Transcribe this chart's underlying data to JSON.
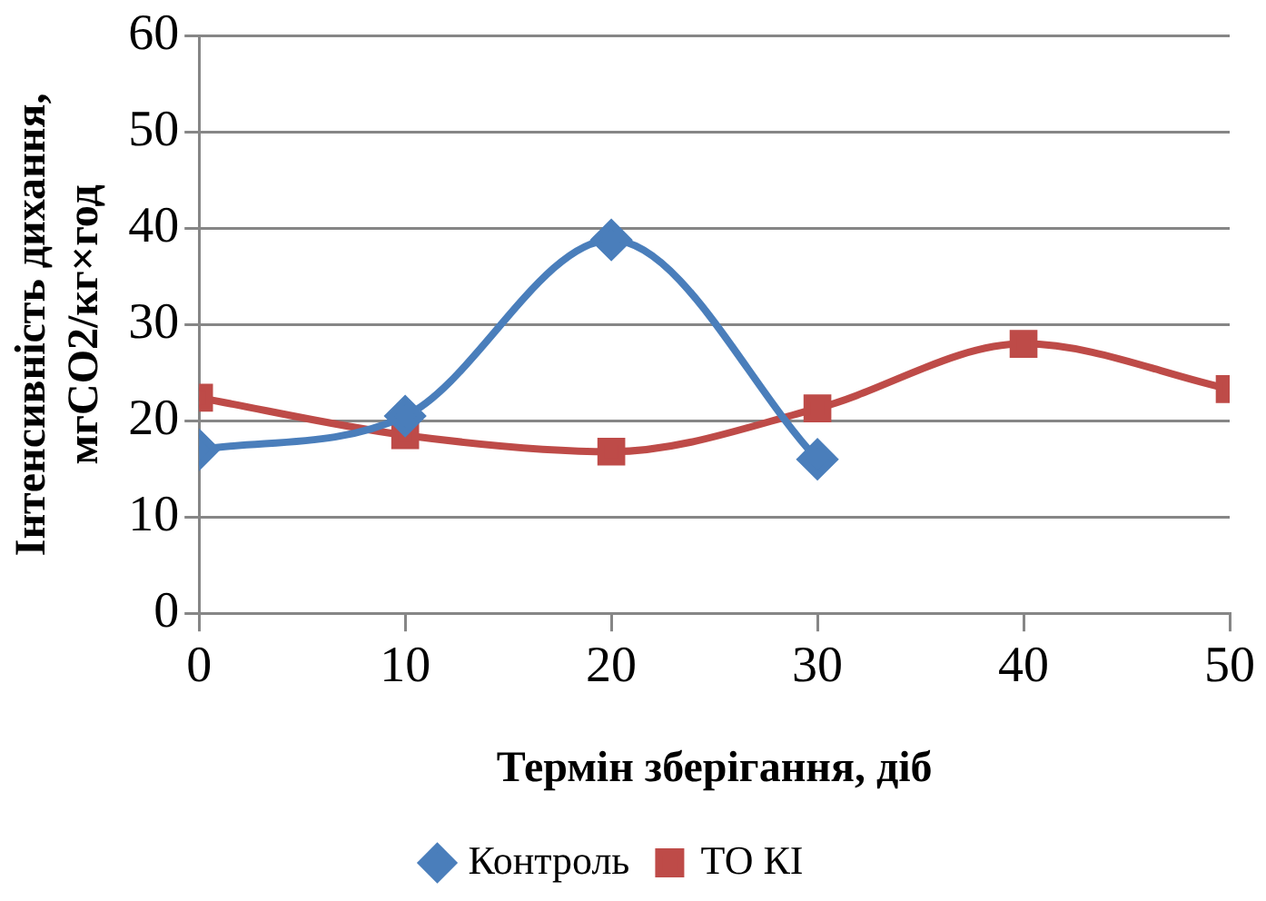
{
  "chart_data": {
    "type": "line",
    "xlabel": "Термін зберігання, діб",
    "ylabel": "Інтенсивність дихання, мгСО2/кг×год",
    "x": [
      0,
      10,
      20,
      30,
      40,
      50
    ],
    "series": [
      {
        "name": "Контроль",
        "color": "#4a7ebb",
        "marker": "diamond",
        "values": [
          17,
          20.5,
          38.8,
          16,
          null,
          null
        ]
      },
      {
        "name": "ТО КІ",
        "color": "#be4b48",
        "marker": "square",
        "values": [
          22.4,
          18.5,
          16.8,
          21.3,
          28,
          23.3
        ]
      }
    ],
    "xlim": [
      0,
      50
    ],
    "xticks": [
      0,
      10,
      20,
      30,
      40,
      50
    ],
    "ylim": [
      0,
      60
    ],
    "yticks": [
      0,
      10,
      20,
      30,
      40,
      50,
      60
    ],
    "grid": "y",
    "legend": "bottom"
  }
}
